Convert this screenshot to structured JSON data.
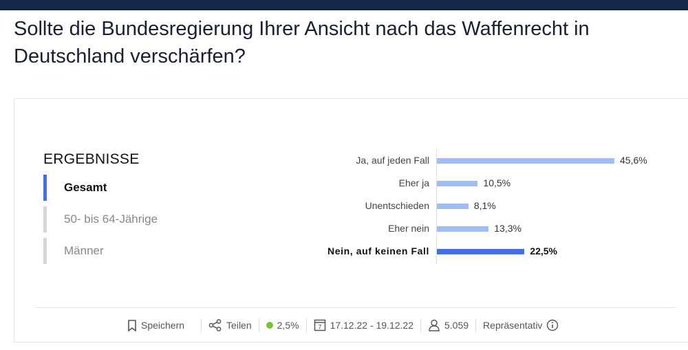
{
  "title": "Sollte die Bundesregierung Ihrer Ansicht nach das Waffenrecht in Deutschland verschärfen?",
  "sidebar": {
    "heading": "ERGEBNISSE",
    "tabs": [
      {
        "label": "Gesamt",
        "active": true
      },
      {
        "label": "50- bis 64-Jährige",
        "active": false
      },
      {
        "label": "Männer",
        "active": false
      }
    ]
  },
  "chart_data": {
    "type": "bar",
    "orientation": "horizontal",
    "categories": [
      "Ja, auf jeden Fall",
      "Eher ja",
      "Unentschieden",
      "Eher nein",
      "Nein, auf keinen Fall"
    ],
    "values": [
      45.6,
      10.5,
      8.1,
      13.3,
      22.5
    ],
    "value_labels": [
      "45,6%",
      "10,5%",
      "8,1%",
      "13,3%",
      "22,5%"
    ],
    "highlighted": "Nein, auf keinen Fall",
    "colors": {
      "bar": "#a2bcf4",
      "highlight": "#4170ee"
    },
    "xlim": [
      0,
      45.6
    ]
  },
  "footer": {
    "save": "Speichern",
    "share": "Teilen",
    "margin": "2,5%",
    "dates": "17.12.22 - 19.12.22",
    "respondents": "5.059",
    "type": "Repräsentativ"
  }
}
